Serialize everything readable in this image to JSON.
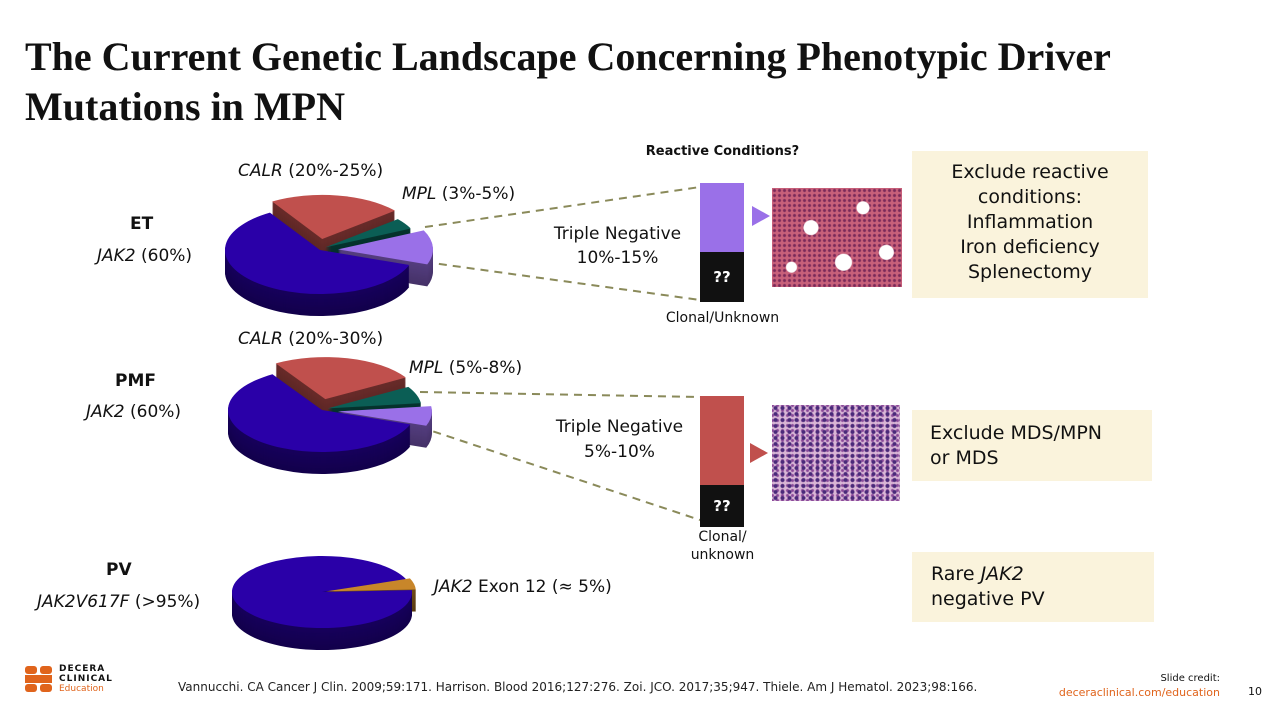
{
  "title": "The Current Genetic Landscape Concerning Phenotypic Driver Mutations in MPN",
  "reactive_header": "Reactive Conditions?",
  "colors": {
    "jak2": "#2a00a8",
    "calr": "#c0504d",
    "mpl": "#0b5e55",
    "triple_negative": "#9a70e8",
    "exon12": "#c8862a",
    "box": "#faf3dc",
    "pmf_bar": "#c0504d",
    "brand": "#e0641c"
  },
  "chart_data": [
    {
      "type": "pie",
      "group": "ET",
      "slices": [
        {
          "name": "JAK2",
          "label_italic": "JAK2",
          "label_rest": " (60%)",
          "value": 60
        },
        {
          "name": "CALR",
          "label_italic": "CALR",
          "label_rest": " (20%-25%)",
          "value": 22.5
        },
        {
          "name": "MPL",
          "label_italic": "MPL",
          "label_rest": " (3%-5%)",
          "value": 4
        },
        {
          "name": "Triple Negative",
          "label_italic": "",
          "label_rest": "Triple Negative 10%-15%",
          "value": 12.5
        }
      ]
    },
    {
      "type": "pie",
      "group": "PMF",
      "slices": [
        {
          "name": "JAK2",
          "label_italic": "JAK2",
          "label_rest": " (60%)",
          "value": 60
        },
        {
          "name": "CALR",
          "label_italic": "CALR",
          "label_rest": " (20%-30%)",
          "value": 25
        },
        {
          "name": "MPL",
          "label_italic": "MPL",
          "label_rest": " (5%-8%)",
          "value": 6.5
        },
        {
          "name": "Triple Negative",
          "label_italic": "",
          "label_rest": "Triple Negative 5%-10%",
          "value": 7.5
        }
      ]
    },
    {
      "type": "pie",
      "group": "PV",
      "slices": [
        {
          "name": "JAK2V617F",
          "label_italic": "JAK2V617F",
          "label_rest": " (>95%)",
          "value": 95
        },
        {
          "name": "JAK2 Exon 12",
          "label_italic": "JAK2",
          "label_rest": " Exon 12 (≈ 5%)",
          "value": 5
        }
      ]
    }
  ],
  "et": {
    "group": "ET",
    "jak2_i": "JAK2",
    "jak2_r": " (60%)",
    "calr_i": "CALR",
    "calr_r": " (20%-25%)",
    "mpl_i": "MPL",
    "mpl_r": " (3%-5%)",
    "tn1": "Triple Negative",
    "tn2": "10%-15%",
    "qq": "??",
    "clonal": "Clonal/Unknown",
    "box": [
      "Exclude reactive",
      "conditions:",
      "Inflammation",
      "Iron deficiency",
      "Splenectomy"
    ]
  },
  "pmf": {
    "group": "PMF",
    "jak2_i": "JAK2",
    "jak2_r": " (60%)",
    "calr_i": "CALR",
    "calr_r": " (20%-30%)",
    "mpl_i": "MPL",
    "mpl_r": " (5%-8%)",
    "tn1": "Triple Negative",
    "tn2": "5%-10%",
    "qq": "??",
    "clonal1": "Clonal/",
    "clonal2": "unknown",
    "box": [
      "Exclude MDS/MPN",
      "or MDS"
    ]
  },
  "pv": {
    "group": "PV",
    "main_i": "JAK2V617F",
    "main_r": " (>95%)",
    "exon_i": "JAK2",
    "exon_r": " Exon 12 (≈ 5%)",
    "box1a": "Rare ",
    "box1b": "JAK2",
    "box2": "negative PV"
  },
  "footer": {
    "logo": [
      "DECERA",
      "CLINICAL",
      "Education"
    ],
    "citation": "Vannucchi. CA Cancer J Clin. 2009;59:171. Harrison. Blood 2016;127:276. Zoi. JCO. 2017;35;947. Thiele. Am J Hematol. 2023;98:166.",
    "credit": "Slide credit:",
    "link": "deceraclinical.com/education",
    "page": "10"
  }
}
